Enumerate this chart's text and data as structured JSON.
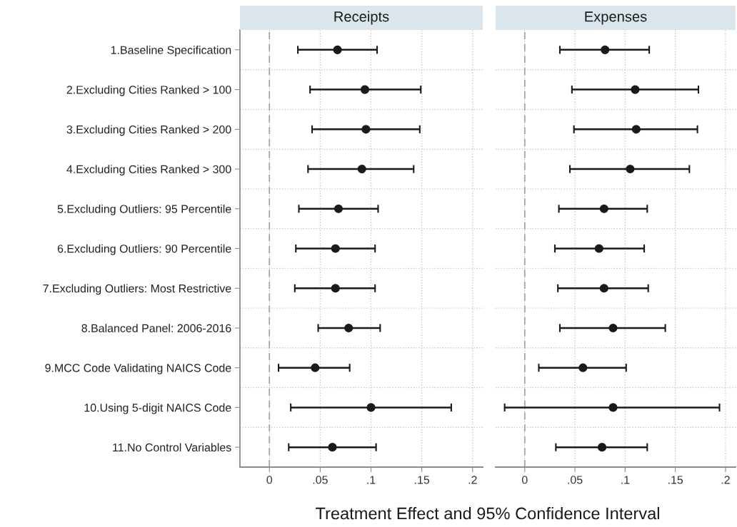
{
  "chart_data": [
    {
      "type": "scatter",
      "title": "Receipts",
      "xlabel": "Treatment Effect and 95% Confidence Interval",
      "orientation": "horizontal",
      "categories": [
        "1.Baseline Specification",
        "2.Excluding Cities Ranked > 100",
        "3.Excluding Cities Ranked > 200",
        "4.Excluding Cities Ranked > 300",
        "5.Excluding Outliers: 95 Percentile",
        "6.Excluding Outliers: 90 Percentile",
        "7.Excluding Outliers: Most Restrictive",
        "8.Balanced Panel: 2006-2016",
        "9.MCC Code Validating NAICS Code",
        "10.Using 5-digit NAICS Code",
        "11.No Control Variables"
      ],
      "series": [
        {
          "color": "#1a1a1a",
          "values": [
            0.067,
            0.094,
            0.095,
            0.091,
            0.068,
            0.065,
            0.065,
            0.078,
            0.045,
            0.1,
            0.062
          ],
          "errors": [
            [
              0.028,
              0.106
            ],
            [
              0.04,
              0.149
            ],
            [
              0.042,
              0.148
            ],
            [
              0.038,
              0.142
            ],
            [
              0.029,
              0.107
            ],
            [
              0.026,
              0.104
            ],
            [
              0.025,
              0.104
            ],
            [
              0.048,
              0.109
            ],
            [
              0.009,
              0.079
            ],
            [
              0.021,
              0.179
            ],
            [
              0.019,
              0.105
            ]
          ]
        }
      ],
      "xlim": [
        -0.029,
        0.21
      ],
      "xticks": [
        0,
        {
          "value": 0.05,
          "label": ".05"
        },
        {
          "value": 0.1,
          "label": ".1"
        },
        {
          "value": 0.15,
          "label": ".15"
        },
        {
          "value": 0.2,
          "label": ".2"
        }
      ],
      "ref_lines": [
        {
          "axis": "x",
          "value": 0,
          "color": "#a0a0a0",
          "line_style": "dashed"
        }
      ],
      "grid": true,
      "marker": "circle"
    },
    {
      "type": "scatter",
      "title": "Expenses",
      "orientation": "horizontal",
      "tick_labels": "x",
      "categories": [
        null,
        null,
        null,
        null,
        null,
        null,
        null,
        null,
        null,
        null,
        null
      ],
      "series": [
        {
          "color": "#1a1a1a",
          "values": [
            0.08,
            0.11,
            0.111,
            0.105,
            0.079,
            0.074,
            0.079,
            0.088,
            0.058,
            0.088,
            0.077
          ],
          "errors": [
            [
              0.035,
              0.124
            ],
            [
              0.047,
              0.173
            ],
            [
              0.049,
              0.172
            ],
            [
              0.045,
              0.164
            ],
            [
              0.034,
              0.122
            ],
            [
              0.03,
              0.119
            ],
            [
              0.033,
              0.123
            ],
            [
              0.035,
              0.14
            ],
            [
              0.014,
              0.101
            ],
            [
              -0.02,
              0.194
            ],
            [
              0.031,
              0.122
            ]
          ]
        }
      ],
      "xlim": [
        -0.029,
        0.21
      ],
      "xticks": [
        0,
        {
          "value": 0.05,
          "label": ".05"
        },
        {
          "value": 0.1,
          "label": ".1"
        },
        {
          "value": 0.15,
          "label": ".15"
        },
        {
          "value": 0.2,
          "label": ".2"
        }
      ],
      "ref_lines": [
        {
          "axis": "x",
          "value": 0,
          "color": "#a0a0a0",
          "line_style": "dashed"
        }
      ],
      "grid": true,
      "marker": "circle"
    }
  ]
}
